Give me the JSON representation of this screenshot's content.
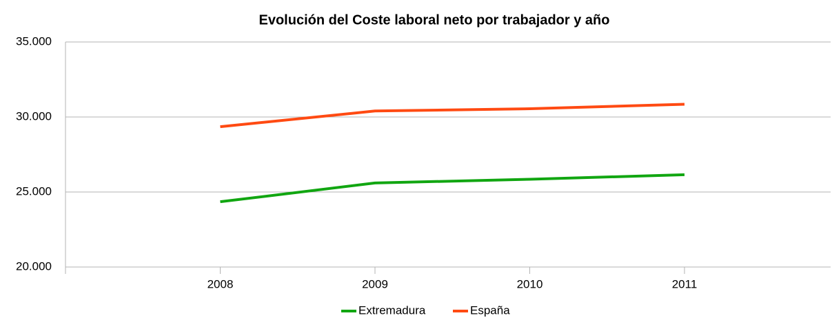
{
  "chart_data": {
    "type": "line",
    "title": "Evolución del Coste laboral neto por trabajador y año",
    "categories": [
      "2008",
      "2009",
      "2010",
      "2011"
    ],
    "series": [
      {
        "name": "Extremadura",
        "color": "#11a611",
        "values": [
          24350,
          25600,
          25850,
          26150
        ]
      },
      {
        "name": "España",
        "color": "#ff4a12",
        "values": [
          29350,
          30400,
          30550,
          30850
        ]
      }
    ],
    "ylim": [
      20000,
      35000
    ],
    "yticks": [
      {
        "value": 20000,
        "label": "20.000"
      },
      {
        "value": 25000,
        "label": "25.000"
      },
      {
        "value": 30000,
        "label": "30.000"
      },
      {
        "value": 35000,
        "label": "35.000"
      }
    ],
    "grid": true,
    "legend": "bottom"
  }
}
